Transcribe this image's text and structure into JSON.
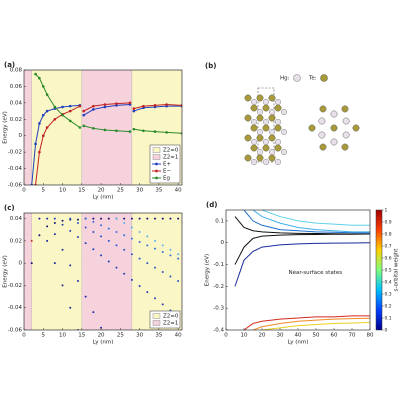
{
  "chart_data": [
    {
      "type": "line",
      "label": "(a)",
      "xlabel": "Ly (nm)",
      "ylabel": "Energy (eV)",
      "markers": true,
      "xlim": [
        0,
        41
      ],
      "ylim": [
        -0.06,
        0.08
      ],
      "xticks": [
        0,
        5,
        10,
        15,
        20,
        25,
        30,
        35,
        40
      ],
      "yticks": [
        -0.06,
        -0.04,
        -0.02,
        0,
        0.02,
        0.04,
        0.06,
        0.08
      ],
      "regions": [
        {
          "range": [
            0,
            2
          ],
          "color": "#f6d2dc"
        },
        {
          "range": [
            2,
            15
          ],
          "color": "#fbf6c6"
        },
        {
          "range": [
            15,
            28
          ],
          "color": "#f6d2dc"
        },
        {
          "range": [
            28,
            41
          ],
          "color": "#fbf6c6"
        }
      ],
      "region_legend": [
        {
          "name": "Z2=0",
          "color": "#fbf6c6"
        },
        {
          "name": "Z2=1",
          "color": "#f6d2dc"
        }
      ],
      "x": [
        2,
        3,
        4,
        5,
        6,
        8,
        10,
        12,
        14.5,
        15,
        15.5,
        18,
        21,
        24,
        27.5,
        28,
        28.5,
        31,
        34,
        37,
        41
      ],
      "series": [
        {
          "name": "E+",
          "color": "#1f3fbf",
          "values": [
            -0.06,
            -0.01,
            0.015,
            0.025,
            0.03,
            0.033,
            0.035,
            0.036,
            0.037,
            null,
            0.025,
            0.032,
            0.035,
            0.037,
            0.038,
            null,
            0.03,
            0.034,
            0.035,
            0.036,
            0.036
          ]
        },
        {
          "name": "E−",
          "color": "#c0221f",
          "values": [
            null,
            -0.06,
            -0.02,
            0,
            0.01,
            0.02,
            0.026,
            0.03,
            0.036,
            null,
            0.03,
            0.036,
            0.038,
            0.039,
            0.04,
            null,
            0.033,
            0.036,
            0.037,
            0.038,
            0.037
          ]
        },
        {
          "name": "Eg",
          "color": "#2a8a2a",
          "values": [
            null,
            0.075,
            0.07,
            0.06,
            0.05,
            0.035,
            0.025,
            0.018,
            0.01,
            null,
            0.012,
            0.009,
            0.007,
            0.006,
            0.005,
            null,
            0.008,
            0.006,
            0.005,
            0.004,
            0.003
          ]
        }
      ]
    },
    {
      "type": "scatter",
      "label": "(c)",
      "xlabel": "Ly (nm)",
      "ylabel": "Energy (eV)",
      "xlim": [
        0,
        41
      ],
      "ylim": [
        -0.06,
        0.045
      ],
      "xticks": [
        0,
        5,
        10,
        15,
        20,
        25,
        30,
        35,
        40
      ],
      "yticks": [
        -0.06,
        -0.04,
        -0.02,
        0,
        0.02,
        0.04
      ],
      "regions": [
        {
          "range": [
            0,
            2
          ],
          "color": "#f6d2dc"
        },
        {
          "range": [
            2,
            15
          ],
          "color": "#fbf6c6"
        },
        {
          "range": [
            15,
            28
          ],
          "color": "#f6d2dc"
        },
        {
          "range": [
            28,
            41
          ],
          "color": "#fbf6c6"
        }
      ],
      "region_legend": [
        {
          "name": "Z2=0",
          "color": "#fbf6c6"
        },
        {
          "name": "Z2=1",
          "color": "#f6d2dc"
        }
      ],
      "x": [
        2,
        4,
        6,
        8,
        10,
        12,
        14,
        16,
        18,
        20,
        22,
        24,
        26,
        28,
        30,
        32,
        34,
        36,
        38,
        40
      ],
      "series": [
        {
          "color": "#14147a",
          "values": [
            0,
            0.025,
            0.033,
            0.036,
            0.038,
            0.039,
            0.039,
            0.04,
            0.04,
            0.04,
            0.04,
            0.04,
            0.04,
            0.04,
            0.04,
            0.04,
            0.04,
            0.04,
            0.04,
            0.04
          ]
        },
        {
          "color": "#1c2396",
          "values": [
            null,
            0.04,
            0.02,
            0,
            -0.02,
            -0.04,
            -0.06,
            null,
            null,
            null,
            null,
            null,
            null,
            null,
            null,
            null,
            null,
            null,
            null,
            null
          ]
        },
        {
          "color": "#2030a8",
          "values": [
            null,
            null,
            0.04,
            0.026,
            0.012,
            -0.002,
            -0.016,
            -0.03,
            -0.044,
            -0.058,
            null,
            null,
            null,
            null,
            null,
            null,
            null,
            null,
            null,
            null
          ]
        },
        {
          "color": "#2440b8",
          "values": [
            null,
            null,
            null,
            0.04,
            0.0345,
            0.029,
            0.0235,
            0.018,
            0.0125,
            0.007,
            0.0015,
            -0.004,
            -0.0095,
            -0.015,
            -0.0205,
            -0.026,
            -0.0315,
            -0.037,
            -0.0425,
            -0.048
          ]
        },
        {
          "color": "#2a55c8",
          "values": [
            null,
            null,
            null,
            null,
            null,
            0.04,
            0.036,
            0.032,
            0.028,
            0.024,
            0.02,
            0.016,
            0.012,
            0.008,
            0.004,
            0,
            -0.004,
            -0.008,
            -0.012,
            -0.016
          ]
        },
        {
          "color": "#3470d8",
          "values": [
            null,
            null,
            null,
            null,
            null,
            null,
            null,
            0.04,
            0.037,
            0.034,
            0.031,
            0.028,
            0.025,
            0.022,
            0.019,
            0.016,
            0.013,
            0.01,
            0.007,
            0.004
          ]
        },
        {
          "color": "#5ab4f0",
          "values": [
            null,
            null,
            null,
            null,
            null,
            null,
            null,
            null,
            null,
            null,
            null,
            0.04,
            0.036,
            0.032,
            0.028,
            0.024,
            0.02,
            0.016,
            0.012,
            0.008
          ]
        },
        {
          "color": "#c0392b",
          "values": [
            0.02,
            null,
            null,
            null,
            null,
            null,
            null,
            null,
            null,
            null,
            null,
            null,
            null,
            null,
            null,
            null,
            null,
            null,
            null,
            null
          ]
        }
      ]
    },
    {
      "type": "line",
      "label": "(d)",
      "xlabel": "Ly (nm)",
      "ylabel": "Energy (eV)",
      "annotation": "Near-surface states",
      "xlim": [
        0,
        80
      ],
      "ylim": [
        -0.4,
        0.15
      ],
      "xticks": [
        0,
        10,
        20,
        30,
        40,
        50,
        60,
        70,
        80
      ],
      "yticks": [
        -0.4,
        -0.3,
        -0.2,
        -0.1,
        0,
        0.1
      ],
      "x": [
        5,
        10,
        15,
        20,
        30,
        40,
        50,
        60,
        70,
        80
      ],
      "series": [
        {
          "color": "#111111",
          "values": [
            0.12,
            0.07,
            0.055,
            0.05,
            0.045,
            0.043,
            0.042,
            0.041,
            0.04,
            0.04
          ]
        },
        {
          "color": "#111111",
          "values": [
            -0.1,
            -0.02,
            0.02,
            0.03,
            0.035,
            0.037,
            0.038,
            0.039,
            0.039,
            0.04
          ]
        },
        {
          "color": "#1a2a9a",
          "values": [
            -0.2,
            -0.08,
            -0.04,
            -0.02,
            -0.01,
            -0.005,
            -0.003,
            -0.002,
            -0.001,
            0
          ]
        },
        {
          "color": "#1f6fd0",
          "values": [
            null,
            0.15,
            0.1,
            0.08,
            0.06,
            0.055,
            0.05,
            0.048,
            0.046,
            0.045
          ]
        },
        {
          "color": "#3fb0e8",
          "values": [
            null,
            null,
            0.15,
            0.12,
            0.09,
            0.07,
            0.06,
            0.055,
            0.05,
            0.05
          ]
        },
        {
          "color": "#5fd0e8",
          "values": [
            null,
            null,
            null,
            0.15,
            0.12,
            0.1,
            0.09,
            0.085,
            0.08,
            0.08
          ]
        },
        {
          "color": "#d4281e",
          "values": [
            null,
            -0.4,
            -0.37,
            -0.36,
            -0.35,
            -0.345,
            -0.34,
            -0.34,
            -0.335,
            -0.335
          ]
        },
        {
          "color": "#f08a24",
          "values": [
            null,
            null,
            -0.4,
            -0.385,
            -0.37,
            -0.36,
            -0.355,
            -0.35,
            -0.348,
            -0.346
          ]
        },
        {
          "color": "#e9d020",
          "values": [
            null,
            null,
            null,
            -0.4,
            -0.39,
            -0.38,
            -0.375,
            -0.37,
            -0.368,
            -0.365
          ]
        }
      ],
      "colorbar": {
        "label": "s-orbital weight",
        "lim": [
          0,
          1
        ],
        "ticks": [
          0,
          0.1,
          0.2,
          0.3,
          0.4,
          0.5,
          0.6,
          0.7,
          0.8,
          0.9,
          1
        ],
        "colors": [
          "#00008f",
          "#0040ff",
          "#00c0ff",
          "#80ff80",
          "#ffd000",
          "#ff4000",
          "#a00000"
        ]
      }
    }
  ],
  "structure_panel": {
    "label": "(b)",
    "hg": "Hg:",
    "te": "Te:"
  }
}
